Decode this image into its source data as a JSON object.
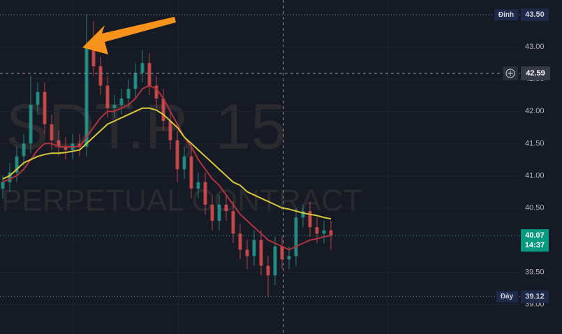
{
  "chart_data": {
    "type": "candlestick",
    "watermark": [
      "SDT.P, 15",
      "PERPETUAL CONTRACT"
    ],
    "ylim": [
      38.54,
      43.73
    ],
    "yticks": [
      {
        "value": 39,
        "label": "39.00"
      },
      {
        "value": 39.5,
        "label": "39.50"
      },
      {
        "value": 40,
        "label": "40.00"
      },
      {
        "value": 40.5,
        "label": "40.50"
      },
      {
        "value": 41,
        "label": "41.00"
      },
      {
        "value": 41.5,
        "label": "41.50"
      },
      {
        "value": 42,
        "label": "42.00"
      },
      {
        "value": 42.5,
        "label": "42.50"
      },
      {
        "value": 43,
        "label": "43.00"
      },
      {
        "value": 43.5,
        "label": "43.50"
      }
    ],
    "grid": true,
    "up_color": "#26a69a",
    "down_color": "#ef5350",
    "ohlc": [
      [
        40.8,
        41.0,
        40.65,
        40.9
      ],
      [
        40.9,
        41.2,
        40.75,
        41.05
      ],
      [
        41.05,
        41.45,
        40.9,
        41.3
      ],
      [
        41.3,
        41.65,
        41.15,
        41.5
      ],
      [
        41.5,
        42.55,
        41.35,
        42.1
      ],
      [
        42.1,
        42.45,
        41.95,
        42.3
      ],
      [
        42.3,
        42.45,
        41.65,
        41.8
      ],
      [
        41.8,
        41.95,
        41.4,
        41.55
      ],
      [
        41.55,
        41.7,
        41.3,
        41.45
      ],
      [
        41.45,
        41.6,
        41.25,
        41.4
      ],
      [
        41.4,
        41.65,
        41.25,
        41.5
      ],
      [
        41.5,
        41.65,
        41.3,
        41.45
      ],
      [
        41.45,
        43.5,
        41.3,
        43.0
      ],
      [
        43.0,
        43.4,
        42.55,
        42.7
      ],
      [
        42.7,
        42.85,
        42.25,
        42.4
      ],
      [
        42.4,
        42.55,
        41.9,
        42.05
      ],
      [
        42.05,
        42.25,
        41.9,
        42.1
      ],
      [
        42.1,
        42.35,
        41.95,
        42.2
      ],
      [
        42.2,
        42.5,
        42.05,
        42.35
      ],
      [
        42.35,
        42.75,
        42.2,
        42.6
      ],
      [
        42.6,
        42.95,
        42.45,
        42.75
      ],
      [
        42.75,
        42.9,
        42.25,
        42.4
      ],
      [
        42.4,
        42.55,
        42.05,
        42.2
      ],
      [
        42.2,
        42.35,
        41.7,
        41.85
      ],
      [
        41.85,
        42.0,
        41.4,
        41.55
      ],
      [
        41.55,
        41.7,
        40.9,
        41.1
      ],
      [
        41.1,
        41.45,
        40.95,
        41.3
      ],
      [
        41.3,
        41.45,
        40.65,
        40.8
      ],
      [
        40.8,
        41.05,
        40.65,
        40.9
      ],
      [
        40.9,
        41.05,
        40.4,
        40.55
      ],
      [
        40.55,
        40.7,
        40.15,
        40.3
      ],
      [
        40.3,
        40.7,
        40.15,
        40.55
      ],
      [
        40.55,
        40.7,
        40.3,
        40.45
      ],
      [
        40.45,
        40.6,
        39.95,
        40.1
      ],
      [
        40.1,
        40.25,
        39.7,
        39.85
      ],
      [
        39.85,
        40.0,
        39.55,
        39.75
      ],
      [
        39.75,
        40.15,
        39.6,
        40.0
      ],
      [
        40.0,
        40.15,
        39.45,
        39.6
      ],
      [
        39.6,
        39.75,
        39.12,
        39.45
      ],
      [
        39.45,
        40.05,
        39.3,
        39.9
      ],
      [
        39.9,
        40.05,
        39.55,
        39.7
      ],
      [
        39.7,
        39.9,
        39.55,
        39.75
      ],
      [
        39.75,
        40.5,
        39.6,
        40.35
      ],
      [
        40.35,
        40.55,
        40.2,
        40.45
      ],
      [
        40.45,
        40.6,
        40.05,
        40.2
      ],
      [
        40.2,
        40.35,
        39.95,
        40.1
      ],
      [
        40.1,
        40.3,
        39.95,
        40.15
      ],
      [
        40.15,
        40.3,
        39.85,
        40.07
      ]
    ],
    "lines": [
      {
        "color": "#b2333d",
        "values": [
          40.9,
          40.95,
          41.0,
          41.1,
          41.25,
          41.4,
          41.5,
          41.5,
          41.45,
          41.45,
          41.45,
          41.45,
          41.6,
          41.75,
          41.9,
          42.0,
          42.0,
          42.05,
          42.1,
          42.2,
          42.35,
          42.4,
          42.35,
          42.2,
          42.0,
          41.8,
          41.6,
          41.45,
          41.25,
          41.1,
          40.95,
          40.85,
          40.7,
          40.55,
          40.4,
          40.3,
          40.2,
          40.1,
          40.0,
          39.95,
          39.9,
          39.85,
          39.9,
          39.95,
          40.0,
          40.02,
          40.05,
          40.07
        ]
      },
      {
        "color": "#d8c83a",
        "values": [
          40.95,
          41.0,
          41.1,
          41.2,
          41.25,
          41.3,
          41.33,
          41.35,
          41.35,
          41.36,
          41.38,
          41.4,
          41.5,
          41.6,
          41.7,
          41.8,
          41.85,
          41.9,
          41.95,
          42.0,
          42.05,
          42.05,
          42.02,
          41.95,
          41.85,
          41.75,
          41.6,
          41.5,
          41.4,
          41.3,
          41.2,
          41.1,
          41.0,
          40.9,
          40.85,
          40.75,
          40.7,
          40.65,
          40.6,
          40.55,
          40.5,
          40.48,
          40.45,
          40.42,
          40.4,
          40.38,
          40.35,
          40.33
        ]
      }
    ],
    "high_marker": {
      "title": "Đỉnh",
      "price": {
        "value": 43.5,
        "label": "43.50"
      }
    },
    "crosshair_price": 42.59,
    "last_price": {
      "price": 40.07,
      "countdown": "14:37"
    },
    "low_marker": {
      "title": "Đáy",
      "price": 39.12
    }
  }
}
